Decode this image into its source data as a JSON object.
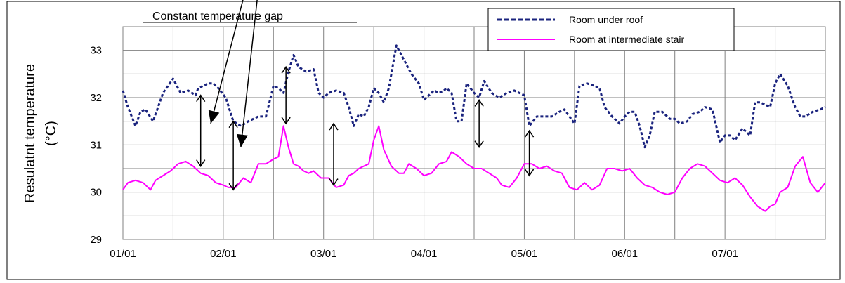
{
  "chart_data": {
    "type": "line",
    "title": "",
    "xlabel": "",
    "ylabel": "Resulatnt temperature (°C)",
    "ylabel_lines": [
      "Resulatnt temperature",
      "(°C)"
    ],
    "ylim": [
      29,
      33.5
    ],
    "y_ticks": [
      "29",
      "30",
      "31",
      "32",
      "33"
    ],
    "x_ticks": [
      "01/01",
      "02/01",
      "03/01",
      "04/01",
      "05/01",
      "06/01",
      "07/01"
    ],
    "x_range_days": [
      0,
      14
    ],
    "grid": true,
    "legend_position": "top-right",
    "annotation": "Constant temperature gap",
    "series": [
      {
        "name": "Room under roof",
        "color": "#1a237e",
        "style": "dashed",
        "x": [
          0,
          0.1,
          0.25,
          0.35,
          0.45,
          0.6,
          0.8,
          1.0,
          1.15,
          1.3,
          1.45,
          1.5,
          1.6,
          1.7,
          1.8,
          1.9,
          2.05,
          2.2,
          2.35,
          2.5,
          2.7,
          2.85,
          3.0,
          3.1,
          3.2,
          3.3,
          3.4,
          3.5,
          3.65,
          3.8,
          3.9,
          4.0,
          4.1,
          4.25,
          4.4,
          4.5,
          4.6,
          4.7,
          4.8,
          4.9,
          5.0,
          5.1,
          5.2,
          5.3,
          5.45,
          5.6,
          5.75,
          5.9,
          6.0,
          6.1,
          6.2,
          6.3,
          6.4,
          6.45,
          6.55,
          6.65,
          6.75,
          6.85,
          7.0,
          7.1,
          7.2,
          7.35,
          7.5,
          7.65,
          7.8,
          7.9,
          8.0,
          8.1,
          8.25,
          8.4,
          8.55,
          8.7,
          8.8,
          8.9,
          9.0,
          9.1,
          9.25,
          9.4,
          9.5,
          9.6,
          9.75,
          9.9,
          10.0,
          10.1,
          10.2,
          10.3,
          10.4,
          10.5,
          10.6,
          10.75,
          10.9,
          11.0,
          11.1,
          11.25,
          11.35,
          11.5,
          11.6,
          11.75,
          11.9,
          12.0,
          12.1,
          12.2,
          12.35,
          12.5,
          12.6,
          12.7,
          12.8,
          12.9,
          13.0,
          13.1,
          13.25,
          13.4,
          13.5,
          13.6,
          13.75,
          13.9,
          14.0
        ],
        "values": [
          32.15,
          31.8,
          31.4,
          31.7,
          31.75,
          31.5,
          32.1,
          32.4,
          32.1,
          32.15,
          32.05,
          32.2,
          32.25,
          32.3,
          32.3,
          32.2,
          32.0,
          31.5,
          31.4,
          31.5,
          31.6,
          31.6,
          32.25,
          32.2,
          32.1,
          32.55,
          32.9,
          32.65,
          32.55,
          32.6,
          32.1,
          32.0,
          32.1,
          32.15,
          32.1,
          31.8,
          31.4,
          31.65,
          31.6,
          31.8,
          32.2,
          32.1,
          31.9,
          32.2,
          33.1,
          32.8,
          32.5,
          32.3,
          31.95,
          32.05,
          32.15,
          32.1,
          32.15,
          32.2,
          32.1,
          31.5,
          31.5,
          32.3,
          32.1,
          32.0,
          32.35,
          32.1,
          32.0,
          32.1,
          32.15,
          32.1,
          32.05,
          31.4,
          31.6,
          31.6,
          31.6,
          31.7,
          31.75,
          31.6,
          31.45,
          32.25,
          32.3,
          32.25,
          32.2,
          31.8,
          31.6,
          31.45,
          31.6,
          31.7,
          31.7,
          31.4,
          30.95,
          31.2,
          31.7,
          31.7,
          31.55,
          31.55,
          31.45,
          31.5,
          31.65,
          31.7,
          31.8,
          31.75,
          31.05,
          31.2,
          31.2,
          31.1,
          31.35,
          31.2,
          31.9,
          31.9,
          31.85,
          31.8,
          32.3,
          32.5,
          32.25,
          31.8,
          31.6,
          31.6,
          31.7,
          31.75,
          31.8
        ]
      },
      {
        "name": "Room at intermediate stair",
        "color": "#ff00ff",
        "style": "solid",
        "x": [
          0,
          0.1,
          0.25,
          0.4,
          0.55,
          0.65,
          0.8,
          0.95,
          1.1,
          1.25,
          1.4,
          1.55,
          1.7,
          1.85,
          2.0,
          2.1,
          2.25,
          2.4,
          2.55,
          2.7,
          2.85,
          3.0,
          3.1,
          3.2,
          3.3,
          3.4,
          3.5,
          3.6,
          3.7,
          3.8,
          3.95,
          4.1,
          4.25,
          4.4,
          4.5,
          4.6,
          4.7,
          4.8,
          4.9,
          5.0,
          5.1,
          5.2,
          5.35,
          5.5,
          5.6,
          5.7,
          5.85,
          6.0,
          6.15,
          6.3,
          6.45,
          6.55,
          6.7,
          6.85,
          7.0,
          7.15,
          7.3,
          7.45,
          7.55,
          7.7,
          7.85,
          8.0,
          8.15,
          8.3,
          8.45,
          8.6,
          8.75,
          8.9,
          9.05,
          9.2,
          9.35,
          9.5,
          9.65,
          9.8,
          9.95,
          10.1,
          10.25,
          10.4,
          10.55,
          10.7,
          10.85,
          11.0,
          11.15,
          11.3,
          11.45,
          11.6,
          11.75,
          11.9,
          12.05,
          12.2,
          12.35,
          12.5,
          12.65,
          12.8,
          12.9,
          13.0,
          13.1,
          13.25,
          13.4,
          13.55,
          13.7,
          13.85,
          14.0
        ],
        "values": [
          30.05,
          30.2,
          30.25,
          30.2,
          30.05,
          30.25,
          30.35,
          30.45,
          30.6,
          30.65,
          30.55,
          30.4,
          30.35,
          30.2,
          30.15,
          30.1,
          30.1,
          30.3,
          30.2,
          30.6,
          30.6,
          30.7,
          30.75,
          31.4,
          30.95,
          30.6,
          30.55,
          30.45,
          30.4,
          30.45,
          30.3,
          30.3,
          30.1,
          30.15,
          30.35,
          30.4,
          30.5,
          30.55,
          30.6,
          31.1,
          31.4,
          30.9,
          30.55,
          30.4,
          30.4,
          30.6,
          30.5,
          30.35,
          30.4,
          30.6,
          30.65,
          30.85,
          30.75,
          30.6,
          30.5,
          30.5,
          30.4,
          30.3,
          30.15,
          30.1,
          30.3,
          30.6,
          30.6,
          30.5,
          30.55,
          30.45,
          30.4,
          30.1,
          30.05,
          30.2,
          30.05,
          30.15,
          30.5,
          30.5,
          30.45,
          30.5,
          30.3,
          30.15,
          30.1,
          30.0,
          29.95,
          30.0,
          30.3,
          30.5,
          30.6,
          30.55,
          30.4,
          30.25,
          30.2,
          30.3,
          30.15,
          29.9,
          29.7,
          29.6,
          29.7,
          29.75,
          30.0,
          30.1,
          30.55,
          30.75,
          30.2,
          30.0,
          30.2
        ]
      }
    ],
    "gap_arrows": [
      {
        "x": 1.55,
        "y_top": 32.05,
        "y_bottom": 30.55
      },
      {
        "x": 2.2,
        "y_top": 31.5,
        "y_bottom": 30.05
      },
      {
        "x": 3.25,
        "y_top": 32.65,
        "y_bottom": 31.45
      },
      {
        "x": 4.2,
        "y_top": 31.45,
        "y_bottom": 30.15
      },
      {
        "x": 7.1,
        "y_top": 31.95,
        "y_bottom": 30.95
      },
      {
        "x": 8.1,
        "y_top": 31.3,
        "y_bottom": 30.35
      }
    ],
    "pointer_arrows": [
      {
        "from_x": 2.45,
        "from_y": 34.3,
        "to_x": 1.75,
        "to_y": 31.45
      },
      {
        "from_x": 2.7,
        "from_y": 34.3,
        "to_x": 2.35,
        "to_y": 30.95
      }
    ]
  }
}
